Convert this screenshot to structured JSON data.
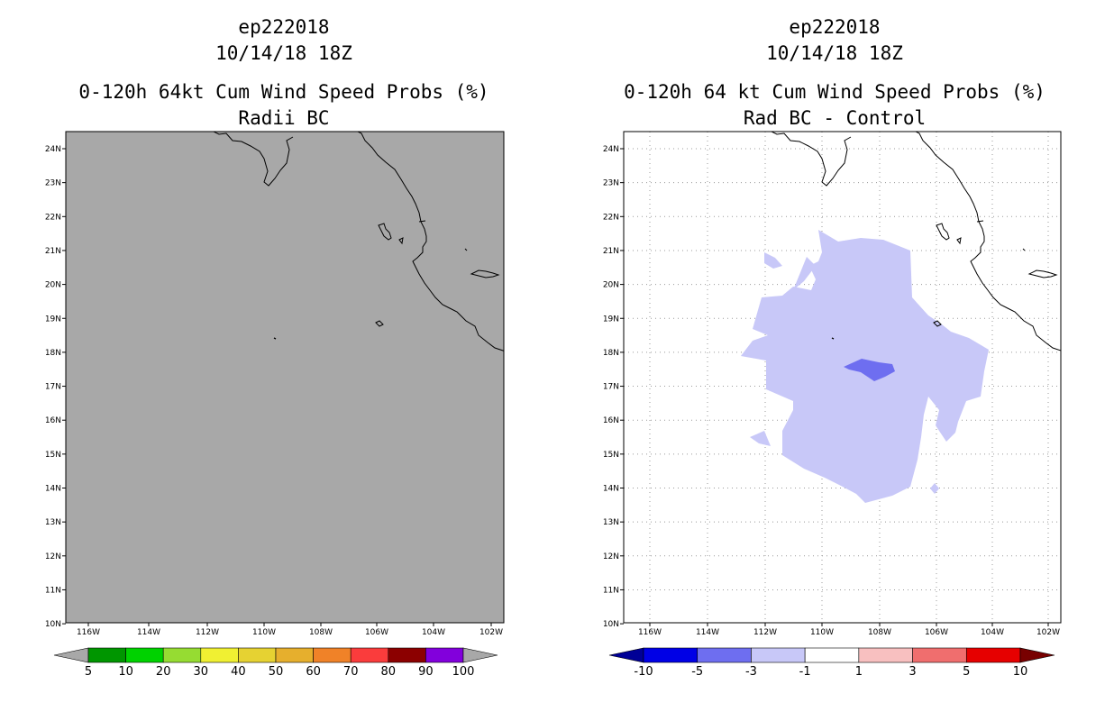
{
  "left_panel": {
    "title_line1": "ep222018",
    "title_line2": "10/14/18 18Z",
    "title_line3": "0-120h 64kt Cum Wind Speed Probs (%)",
    "title_line4": "Radii BC",
    "lat_labels": [
      "24N",
      "23N",
      "22N",
      "21N",
      "20N",
      "19N",
      "18N",
      "17N",
      "16N",
      "15N",
      "14N",
      "13N",
      "12N",
      "11N",
      "10N"
    ],
    "lon_labels": [
      "116W",
      "114W",
      "112W",
      "110W",
      "108W",
      "106W",
      "104W",
      "102W"
    ],
    "colorbar": {
      "labels": [
        "5",
        "10",
        "20",
        "30",
        "40",
        "50",
        "60",
        "70",
        "80",
        "90",
        "100"
      ],
      "colors": [
        "#a8a8a8",
        "#009600",
        "#00d200",
        "#96dc32",
        "#f0f032",
        "#e6d232",
        "#e6af2d",
        "#f08228",
        "#fa3c3c",
        "#8c0000",
        "#8200dc",
        "#a8a8a8"
      ]
    }
  },
  "right_panel": {
    "title_line1": "ep222018",
    "title_line2": "10/14/18 18Z",
    "title_line3": "0-120h 64 kt Cum Wind Speed Probs (%)",
    "title_line4": "Rad BC - Control",
    "lat_labels": [
      "24N",
      "23N",
      "22N",
      "21N",
      "20N",
      "19N",
      "18N",
      "17N",
      "16N",
      "15N",
      "14N",
      "13N",
      "12N",
      "11N",
      "10N"
    ],
    "lon_labels": [
      "116W",
      "114W",
      "112W",
      "110W",
      "108W",
      "106W",
      "104W",
      "102W"
    ],
    "colorbar": {
      "labels": [
        "-10",
        "-5",
        "-3",
        "-1",
        "1",
        "3",
        "5",
        "10"
      ],
      "colors": [
        "#000096",
        "#0000e6",
        "#6e6ef0",
        "#c8c8f8",
        "#ffffff",
        "#f8c0c0",
        "#f06e6e",
        "#e60000",
        "#780000"
      ]
    }
  },
  "colors": {
    "gray_fill": "#a8a8a8",
    "light_blue": "#c8c8f8",
    "medium_blue": "#6e6ef0"
  }
}
